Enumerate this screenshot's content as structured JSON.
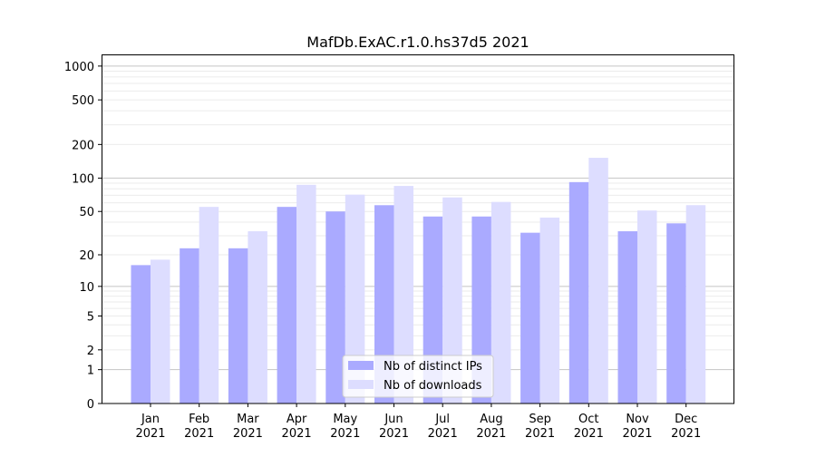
{
  "chart_data": {
    "type": "bar",
    "title": "MafDb.ExAC.r1.0.hs37d5 2021",
    "xlabel": "",
    "ylabel": "",
    "yscale": "log10(y+1)",
    "ylim": [
      0,
      1270
    ],
    "grid": true,
    "legend_position": "bottom-center",
    "categories": [
      "Jan\n2021",
      "Feb\n2021",
      "Mar\n2021",
      "Apr\n2021",
      "May\n2021",
      "Jun\n2021",
      "Jul\n2021",
      "Aug\n2021",
      "Sep\n2021",
      "Oct\n2021",
      "Nov\n2021",
      "Dec\n2021"
    ],
    "y_ticks": [
      0,
      1,
      2,
      5,
      10,
      20,
      50,
      100,
      200,
      500,
      1000
    ],
    "series": [
      {
        "name": "Nb of distinct IPs",
        "color": "#aaaaff",
        "values": [
          16,
          23,
          23,
          55,
          50,
          57,
          45,
          45,
          32,
          92,
          33,
          39
        ]
      },
      {
        "name": "Nb of downloads",
        "color": "#ddddff",
        "values": [
          18,
          55,
          33,
          87,
          71,
          85,
          67,
          61,
          44,
          152,
          51,
          57
        ]
      }
    ]
  }
}
